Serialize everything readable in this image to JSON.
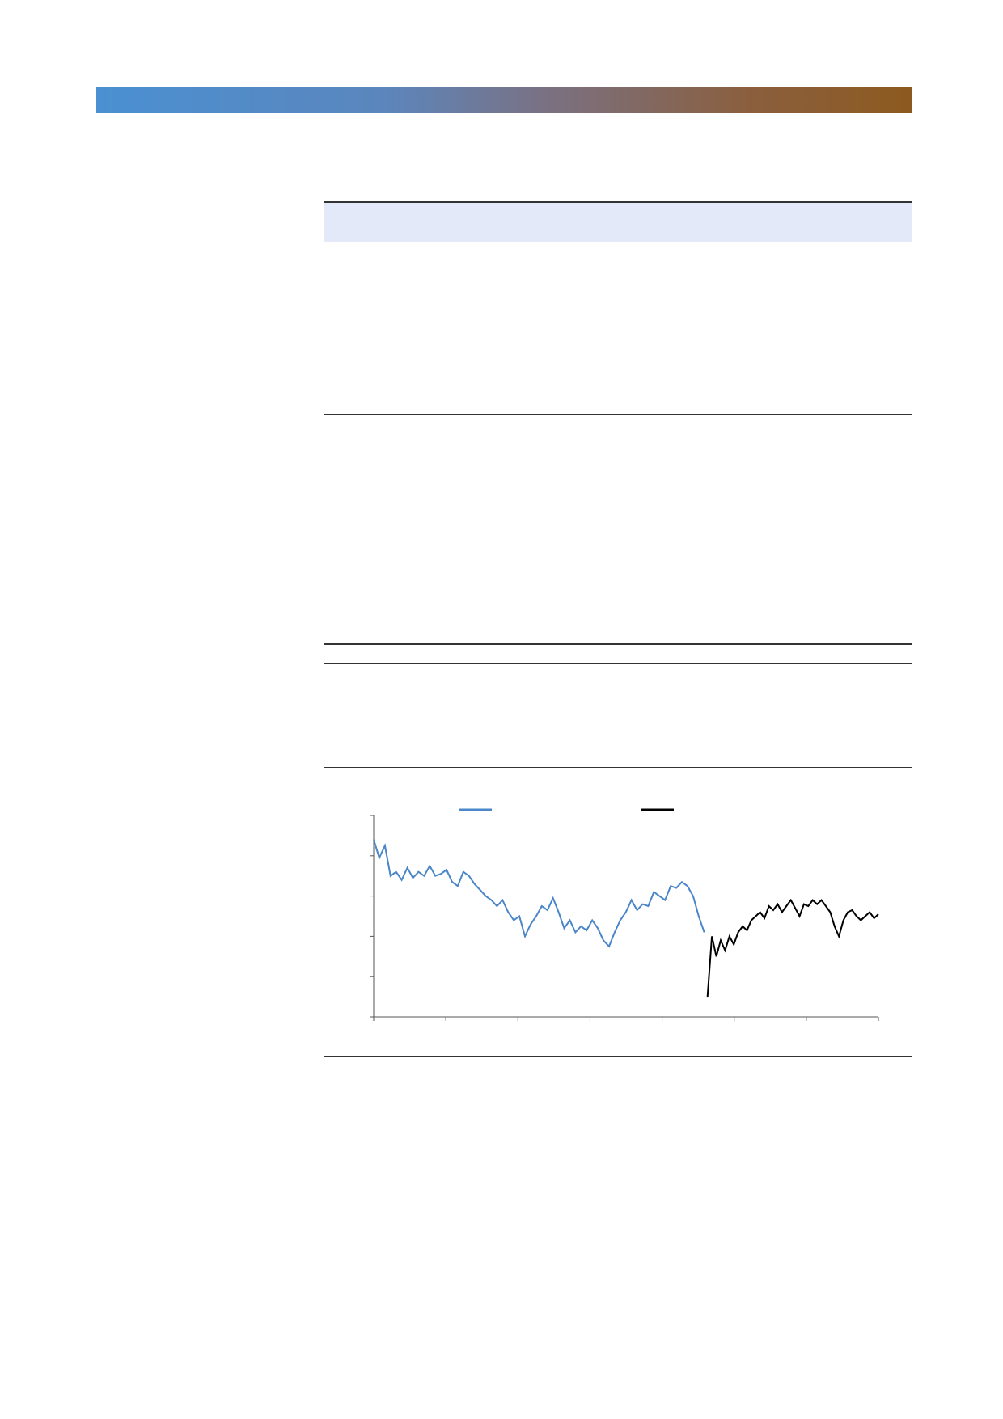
{
  "chart_data": {
    "type": "line",
    "title": "",
    "xlabel": "",
    "ylabel": "",
    "x_tick_count": 7,
    "y_tick_count": 6,
    "series": [
      {
        "name": "",
        "color": "#4a86c8",
        "values": [
          88,
          79,
          85,
          70,
          72,
          68,
          74,
          69,
          72,
          70,
          75,
          70,
          71,
          73,
          67,
          65,
          72,
          70,
          66,
          63,
          60,
          58,
          55,
          58,
          52,
          48,
          50,
          40,
          46,
          50,
          55,
          53,
          59,
          52,
          44,
          48,
          42,
          45,
          43,
          48,
          44,
          38,
          35,
          42,
          48,
          52,
          58,
          53,
          56,
          55,
          62,
          60,
          58,
          65,
          64,
          67,
          65,
          60,
          50,
          42
        ]
      },
      {
        "name": "",
        "color": "#000000",
        "values": [
          10,
          40,
          30,
          38,
          33,
          40,
          36,
          42,
          45,
          43,
          48,
          50,
          52,
          49,
          55,
          53,
          56,
          52,
          55,
          58,
          54,
          50,
          56,
          55,
          58,
          56,
          58,
          55,
          52,
          45,
          40,
          48,
          52,
          53,
          50,
          48,
          50,
          52,
          49,
          51
        ]
      }
    ]
  }
}
